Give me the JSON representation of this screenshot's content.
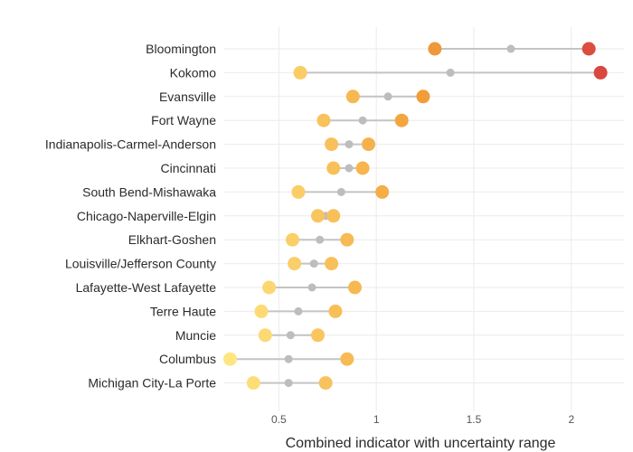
{
  "chart_data": {
    "type": "dumbbell",
    "title": "",
    "xlabel": "Combined indicator with uncertainty range",
    "ylabel": "",
    "xlim": [
      0.22,
      2.27
    ],
    "x_ticks": [
      0.5,
      1,
      1.5,
      2
    ],
    "x_tick_labels": [
      "0.5",
      "1",
      "1.5",
      "2"
    ],
    "grid": true,
    "color_scale": {
      "low": "#ffe680",
      "mid": "#f2a13a",
      "high": "#d9473f",
      "domain": [
        0.25,
        2.15
      ]
    },
    "rows": [
      {
        "label": "Bloomington",
        "low": 1.3,
        "mid": 1.69,
        "high": 2.09
      },
      {
        "label": "Kokomo",
        "low": 0.61,
        "mid": 1.38,
        "high": 2.15
      },
      {
        "label": "Evansville",
        "low": 0.88,
        "mid": 1.06,
        "high": 1.24
      },
      {
        "label": "Fort Wayne",
        "low": 0.73,
        "mid": 0.93,
        "high": 1.13
      },
      {
        "label": "Indianapolis-Carmel-Anderson",
        "low": 0.77,
        "mid": 0.86,
        "high": 0.96
      },
      {
        "label": "Cincinnati",
        "low": 0.78,
        "mid": 0.86,
        "high": 0.93
      },
      {
        "label": "South Bend-Mishawaka",
        "low": 0.6,
        "mid": 0.82,
        "high": 1.03
      },
      {
        "label": "Chicago-Naperville-Elgin",
        "low": 0.7,
        "mid": 0.74,
        "high": 0.78
      },
      {
        "label": "Elkhart-Goshen",
        "low": 0.57,
        "mid": 0.71,
        "high": 0.85
      },
      {
        "label": "Louisville/Jefferson County",
        "low": 0.58,
        "mid": 0.68,
        "high": 0.77
      },
      {
        "label": "Lafayette-West Lafayette",
        "low": 0.45,
        "mid": 0.67,
        "high": 0.89
      },
      {
        "label": "Terre Haute",
        "low": 0.41,
        "mid": 0.6,
        "high": 0.79
      },
      {
        "label": "Muncie",
        "low": 0.43,
        "mid": 0.56,
        "high": 0.7
      },
      {
        "label": "Columbus",
        "low": 0.25,
        "mid": 0.55,
        "high": 0.85
      },
      {
        "label": "Michigan City-La Porte",
        "low": 0.37,
        "mid": 0.55,
        "high": 0.74
      }
    ]
  }
}
